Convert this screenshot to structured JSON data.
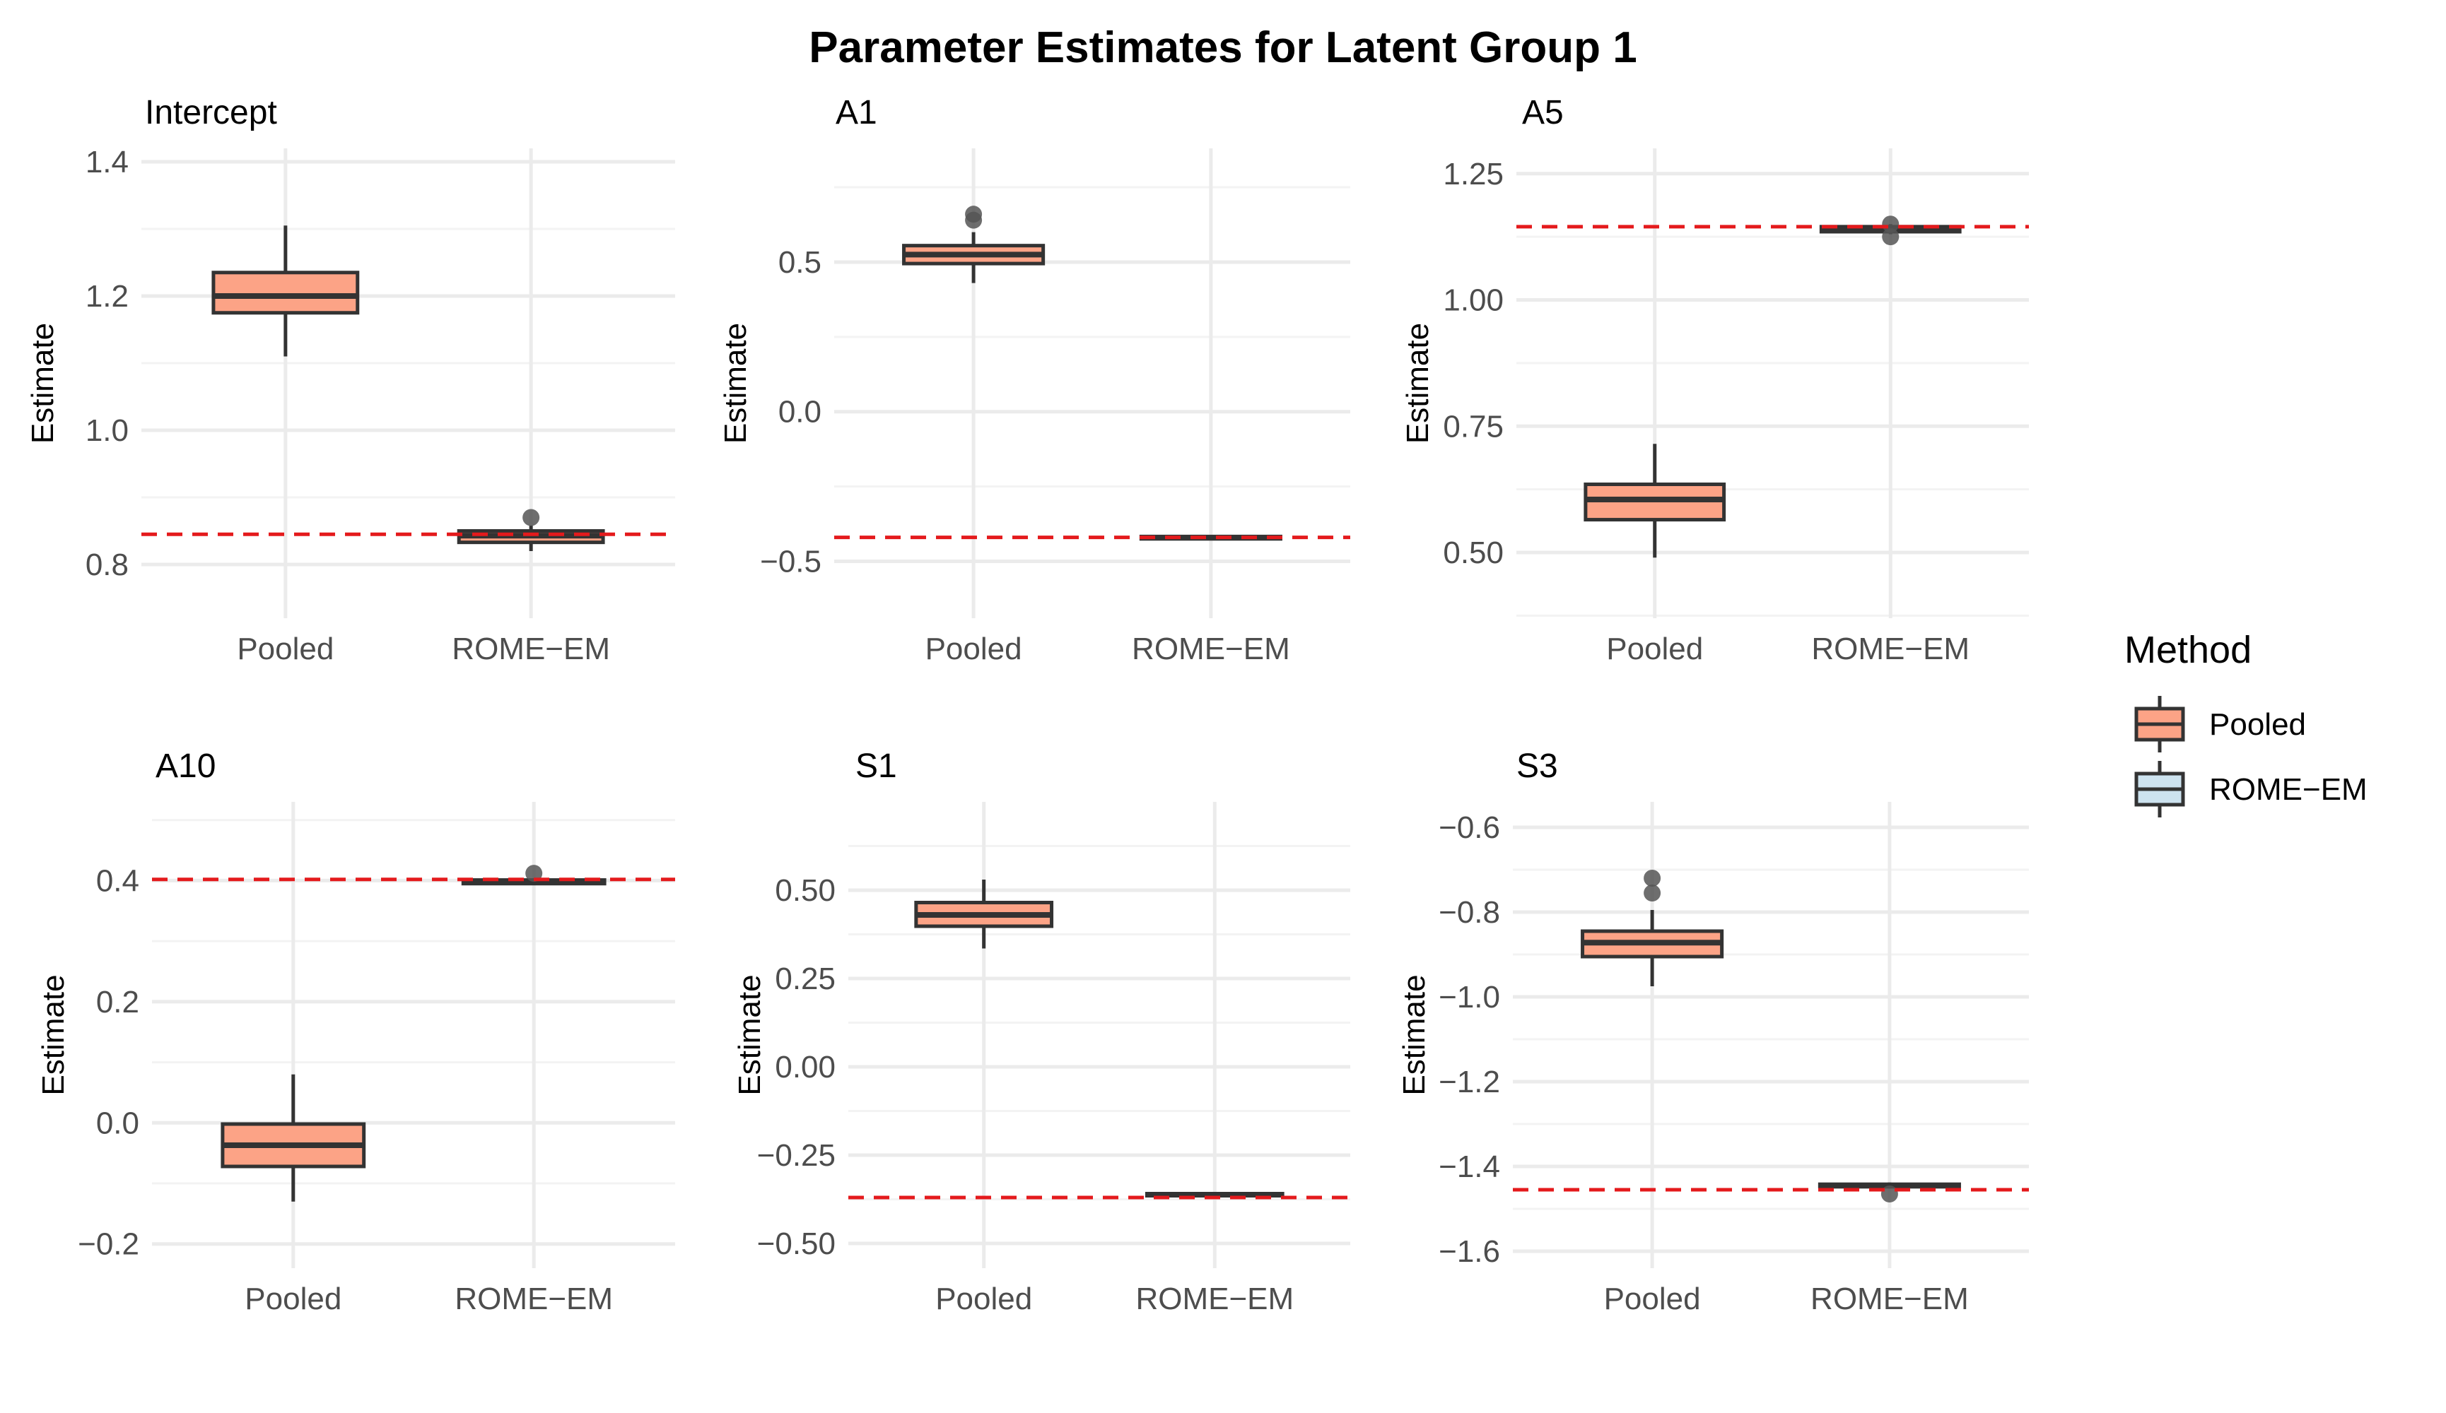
{
  "chart_data": {
    "type": "boxplot",
    "title": "Parameter Estimates for Latent Group 1",
    "ylabel": "Estimate",
    "categories": [
      "Pooled",
      "ROME−EM"
    ],
    "legend": {
      "title": "Method",
      "position": "right",
      "entries": [
        {
          "label": "Pooled",
          "color": "#fca386"
        },
        {
          "label": "ROME−EM",
          "color": "#cde3ef"
        }
      ]
    },
    "colors": {
      "pooled": "#fca386",
      "romeem": "#cde3ef",
      "outline": "#333333",
      "reference": "#e41a1c",
      "grid_major": "#ebebeb",
      "grid_minor": "#f3f3f3",
      "outlier": "#555555"
    },
    "panels": [
      {
        "title": "Intercept",
        "ylim": [
          0.72,
          1.42
        ],
        "yticks": [
          0.8,
          1.0,
          1.2,
          1.4
        ],
        "tick_labels": [
          "0.8",
          "1.0",
          "1.2",
          "1.4"
        ],
        "reference": 0.845,
        "boxes": [
          {
            "method": "Pooled",
            "min": 1.11,
            "q1": 1.175,
            "median": 1.2,
            "q3": 1.235,
            "max": 1.305,
            "outliers": []
          },
          {
            "method": "ROME−EM",
            "min": 0.82,
            "q1": 0.833,
            "median": 0.843,
            "q3": 0.85,
            "max": 0.858,
            "outliers": [
              0.87
            ]
          }
        ]
      },
      {
        "title": "A1",
        "ylim": [
          -0.69,
          0.88
        ],
        "yticks": [
          -0.5,
          0.0,
          0.5
        ],
        "tick_labels": [
          "−0.5",
          "0.0",
          "0.5"
        ],
        "reference": -0.42,
        "boxes": [
          {
            "method": "Pooled",
            "min": 0.43,
            "q1": 0.495,
            "median": 0.525,
            "q3": 0.555,
            "max": 0.6,
            "outliers": [
              0.64,
              0.66
            ]
          },
          {
            "method": "ROME−EM",
            "min": -0.428,
            "q1": -0.425,
            "median": -0.421,
            "q3": -0.417,
            "max": -0.414,
            "outliers": []
          }
        ]
      },
      {
        "title": "A5",
        "ylim": [
          0.37,
          1.3
        ],
        "yticks": [
          0.5,
          0.75,
          1.0,
          1.25
        ],
        "tick_labels": [
          "0.50",
          "0.75",
          "1.00",
          "1.25"
        ],
        "reference": 1.145,
        "boxes": [
          {
            "method": "Pooled",
            "min": 0.49,
            "q1": 0.565,
            "median": 0.605,
            "q3": 0.635,
            "max": 0.715,
            "outliers": []
          },
          {
            "method": "ROME−EM",
            "min": 1.13,
            "q1": 1.135,
            "median": 1.14,
            "q3": 1.145,
            "max": 1.15,
            "outliers": [
              1.125,
              1.15
            ]
          }
        ]
      },
      {
        "title": "A10",
        "ylim": [
          -0.24,
          0.53
        ],
        "yticks": [
          -0.2,
          0.0,
          0.2,
          0.4
        ],
        "tick_labels": [
          "−0.2",
          "0.0",
          "0.2",
          "0.4"
        ],
        "reference": 0.402,
        "boxes": [
          {
            "method": "Pooled",
            "min": -0.13,
            "q1": -0.072,
            "median": -0.037,
            "q3": -0.002,
            "max": 0.08,
            "outliers": []
          },
          {
            "method": "ROME−EM",
            "min": 0.393,
            "q1": 0.395,
            "median": 0.398,
            "q3": 0.401,
            "max": 0.404,
            "outliers": [
              0.412
            ]
          }
        ]
      },
      {
        "title": "S1",
        "ylim": [
          -0.57,
          0.75
        ],
        "yticks": [
          -0.5,
          -0.25,
          0.0,
          0.25,
          0.5
        ],
        "tick_labels": [
          "−0.50",
          "−0.25",
          "0.00",
          "0.25",
          "0.50"
        ],
        "reference": -0.37,
        "boxes": [
          {
            "method": "Pooled",
            "min": 0.335,
            "q1": 0.398,
            "median": 0.43,
            "q3": 0.465,
            "max": 0.53,
            "outliers": []
          },
          {
            "method": "ROME−EM",
            "min": -0.368,
            "q1": -0.365,
            "median": -0.362,
            "q3": -0.359,
            "max": -0.356,
            "outliers": []
          }
        ]
      },
      {
        "title": "S3",
        "ylim": [
          -1.64,
          -0.54
        ],
        "yticks": [
          -1.6,
          -1.4,
          -1.2,
          -1.0,
          -0.8,
          -0.6
        ],
        "tick_labels": [
          "−1.6",
          "−1.4",
          "−1.2",
          "−1.0",
          "−0.8",
          "−0.6"
        ],
        "reference": -1.455,
        "boxes": [
          {
            "method": "Pooled",
            "min": -0.975,
            "q1": -0.905,
            "median": -0.872,
            "q3": -0.845,
            "max": -0.795,
            "outliers": [
              -0.755,
              -0.72
            ]
          },
          {
            "method": "ROME−EM",
            "min": -1.452,
            "q1": -1.448,
            "median": -1.445,
            "q3": -1.442,
            "max": -1.438,
            "outliers": [
              -1.465
            ]
          }
        ]
      }
    ]
  }
}
